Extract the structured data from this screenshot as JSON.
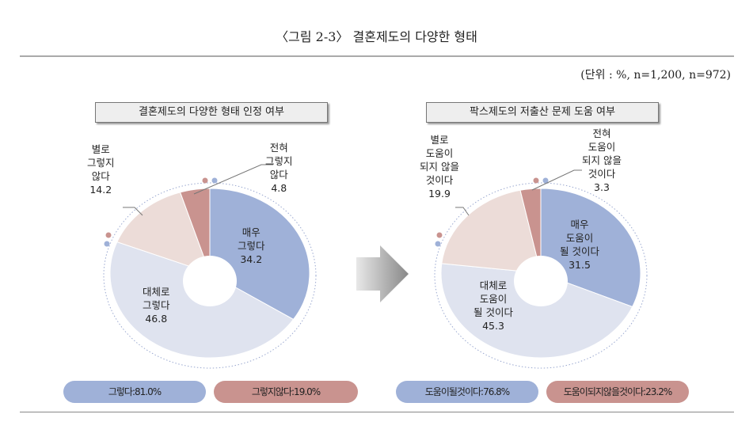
{
  "title": "〈그림 2-3〉 결혼제도의 다양한 형태",
  "unit": "(단위 : %, n=1,200, n=972)",
  "colors": {
    "dark_blue": "#9fb1d8",
    "light_blue": "#dfe3ef",
    "light_pink": "#ecdcd8",
    "dark_pink": "#c9938f"
  },
  "chart_data": [
    {
      "type": "pie",
      "title": "결혼제도의 다양한 형태 인정 여부",
      "donut": true,
      "categories": [
        "매우\n그렇다",
        "대체로\n그렇다",
        "별로\n그렇지\n않다",
        "전혀\n그렇지\n않다"
      ],
      "values": [
        34.2,
        46.8,
        14.2,
        4.8
      ],
      "value_labels": [
        "34.2",
        "46.8",
        "14.2",
        "4.8"
      ],
      "summary": [
        "그렇다:81.0%",
        "그렇지않다:19.0%"
      ]
    },
    {
      "type": "pie",
      "title": "팍스제도의 저출산 문제 도움 여부",
      "donut": true,
      "categories": [
        "매우\n도움이\n될 것이다",
        "대체로\n도움이\n될 것이다",
        "별로\n도움이\n되지 않을\n것이다",
        "전혀\n도움이\n되지 않을\n것이다"
      ],
      "values": [
        31.5,
        45.3,
        19.9,
        3.3
      ],
      "value_labels": [
        "31.5",
        "45.3",
        "19.9",
        "3.3"
      ],
      "summary": [
        "도움이될것이다:76.8%",
        "도움이되지않을것이다:23.2%"
      ]
    }
  ]
}
